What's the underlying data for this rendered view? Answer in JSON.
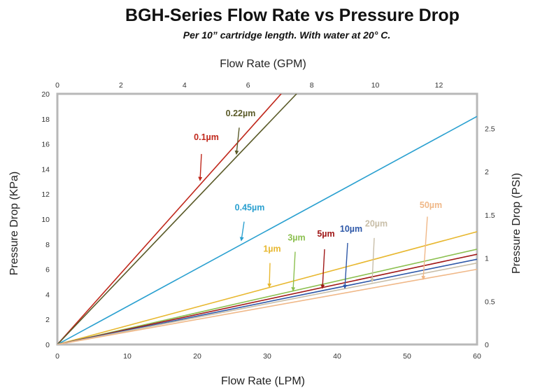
{
  "chart_data": {
    "type": "line",
    "title": "BGH-Series Flow Rate vs Pressure Drop",
    "subtitle": "Per 10” cartridge length. With water at 20° C.",
    "xlabel": "Flow Rate (LPM)",
    "x2label": "Flow Rate (GPM)",
    "ylabel": "Pressure Drop (KPa)",
    "y2label": "Pressure Drop (PSI)",
    "xlim": [
      0,
      60
    ],
    "ylim": [
      0,
      20
    ],
    "x2lim": [
      0,
      13.2
    ],
    "y2lim": [
      0,
      2.9
    ],
    "x_ticks": [
      "0",
      "10",
      "20",
      "30",
      "40",
      "50",
      "60"
    ],
    "y_ticks": [
      "0",
      "2",
      "4",
      "6",
      "8",
      "10",
      "12",
      "14",
      "16",
      "18",
      "20"
    ],
    "x2_ticks": [
      "0",
      "2",
      "4",
      "6",
      "8",
      "10",
      "12"
    ],
    "y2_ticks": [
      "0",
      "0.5",
      "1",
      "1.5",
      "2",
      "2.5"
    ],
    "grid": false,
    "series": [
      {
        "name": "0.1µm",
        "color": "#c0281c",
        "x": [
          0,
          32
        ],
        "y": [
          0,
          20
        ],
        "label_x": 20.5,
        "label_y": 16.2,
        "arrow_to_x": 20.5,
        "arrow_to_y": 13
      },
      {
        "name": "0.22µm",
        "color": "#5a5a28",
        "x": [
          0,
          34.2
        ],
        "y": [
          0,
          20
        ],
        "label_x": 26.2,
        "label_y": 18.2,
        "arrow_to_x": 25.6,
        "arrow_to_y": 15.2
      },
      {
        "name": "0.45µm",
        "color": "#2aa0d0",
        "x": [
          0,
          60
        ],
        "y": [
          0,
          18.2
        ],
        "label_x": 27.5,
        "label_y": 10.7,
        "arrow_to_x": 26.3,
        "arrow_to_y": 8.3
      },
      {
        "name": "1µm",
        "color": "#e8b830",
        "x": [
          0,
          60
        ],
        "y": [
          0,
          9
        ]
      },
      {
        "name": "3µm",
        "color": "#8cc050",
        "x": [
          0,
          60
        ],
        "y": [
          0,
          7.6
        ]
      },
      {
        "name": "5µm",
        "color": "#a01818",
        "x": [
          0,
          60
        ],
        "y": [
          0,
          7.2
        ]
      },
      {
        "name": "10µm",
        "color": "#2e58a8",
        "x": [
          0,
          60
        ],
        "y": [
          0,
          6.8
        ]
      },
      {
        "name": "20µm",
        "color": "#c8bea8",
        "x": [
          0,
          60
        ],
        "y": [
          0,
          6.5
        ]
      },
      {
        "name": "50µm",
        "color": "#f0b888",
        "x": [
          0,
          60
        ],
        "y": [
          0,
          6
        ]
      }
    ],
    "annotations": [
      {
        "text": "0.1µm",
        "color": "#c0281c",
        "x": 21.3,
        "y": 16.3,
        "arrow_from": [
          20.6,
          15.2
        ],
        "arrow_to": [
          20.4,
          13.1
        ]
      },
      {
        "text": "0.22µm",
        "color": "#5a5a28",
        "x": 26.2,
        "y": 18.2,
        "arrow_from": [
          26.0,
          17.3
        ],
        "arrow_to": [
          25.6,
          15.2
        ]
      },
      {
        "text": "0.45µm",
        "color": "#2aa0d0",
        "x": 27.5,
        "y": 10.7,
        "arrow_from": [
          26.7,
          9.8
        ],
        "arrow_to": [
          26.3,
          8.3
        ]
      },
      {
        "text": "1µm",
        "color": "#e8b830",
        "x": 30.7,
        "y": 7.4,
        "arrow_from": [
          30.4,
          6.5
        ],
        "arrow_to": [
          30.3,
          4.6
        ]
      },
      {
        "text": "3µm",
        "color": "#8cc050",
        "x": 34.2,
        "y": 8.3,
        "arrow_from": [
          34.0,
          7.4
        ],
        "arrow_to": [
          33.7,
          4.3
        ]
      },
      {
        "text": "5µm",
        "color": "#a01818",
        "x": 38.4,
        "y": 8.6,
        "arrow_from": [
          38.2,
          7.6
        ],
        "arrow_to": [
          37.9,
          4.5
        ]
      },
      {
        "text": "10µm",
        "color": "#2e58a8",
        "x": 42.0,
        "y": 9.0,
        "arrow_from": [
          41.5,
          8.1
        ],
        "arrow_to": [
          41.1,
          4.5
        ]
      },
      {
        "text": "20µm",
        "color": "#c8bea8",
        "x": 45.6,
        "y": 9.4,
        "arrow_from": [
          45.3,
          8.5
        ],
        "arrow_to": [
          45.0,
          5.0
        ]
      },
      {
        "text": "50µm",
        "color": "#f0b888",
        "x": 53.4,
        "y": 10.9,
        "arrow_from": [
          52.9,
          10.2
        ],
        "arrow_to": [
          52.3,
          5.2
        ]
      }
    ]
  }
}
